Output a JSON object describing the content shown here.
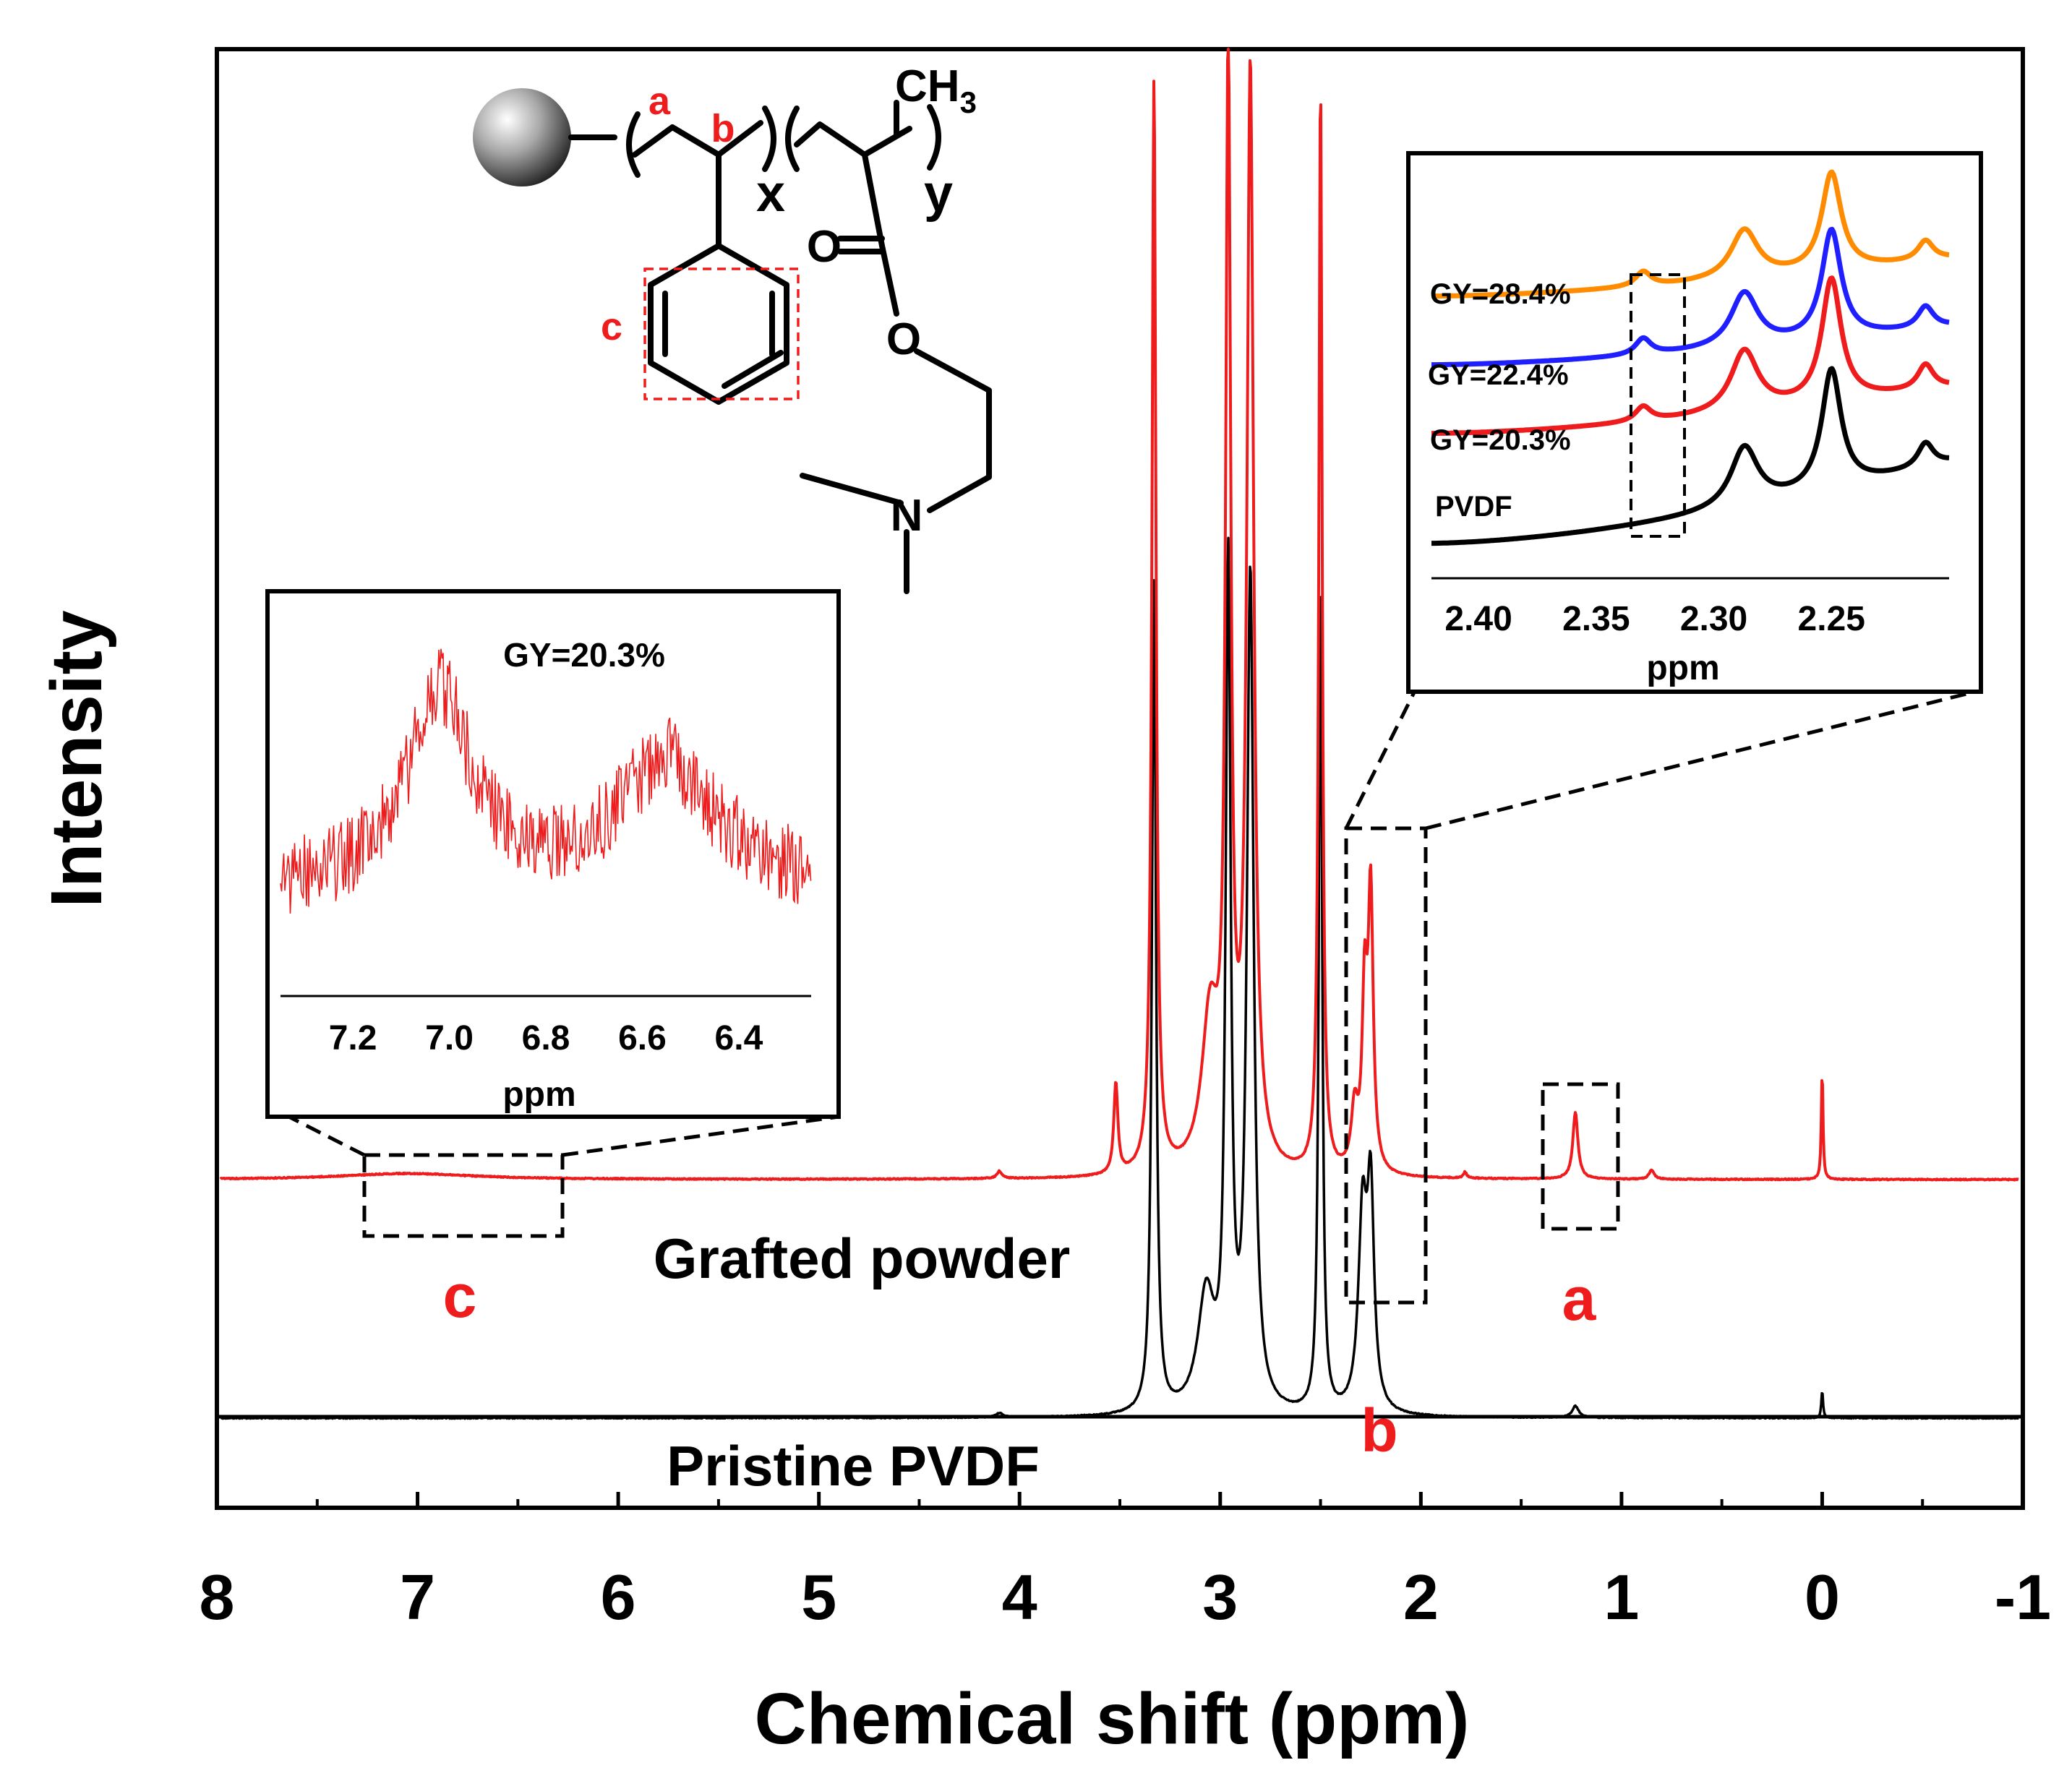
{
  "chart_data": [
    {
      "type": "line",
      "title": "",
      "xlabel": "Chemical shift (ppm)",
      "ylabel": "Intensity",
      "xlim": [
        8,
        -1
      ],
      "x_reversed": true,
      "xticks": [
        "8",
        "7",
        "6",
        "5",
        "4",
        "3",
        "2",
        "1",
        "0",
        "-1"
      ],
      "series": [
        {
          "name": "Grafted powder",
          "color": "#ee1c1c",
          "peaks": [
            {
              "x": 7.05,
              "height": 0.01,
              "width": 0.4
            },
            {
              "x": 4.1,
              "height": 0.012,
              "width": 0.015
            },
            {
              "x": 3.52,
              "height": 0.15,
              "width": 0.012
            },
            {
              "x": 3.33,
              "height": 1.8,
              "width": 0.012
            },
            {
              "x": 3.05,
              "height": 0.25,
              "width": 0.05
            },
            {
              "x": 2.96,
              "height": 1.8,
              "width": 0.015
            },
            {
              "x": 2.85,
              "height": 1.8,
              "width": 0.02
            },
            {
              "x": 2.5,
              "height": 1.8,
              "width": 0.01
            },
            {
              "x": 2.33,
              "height": 0.1,
              "width": 0.02
            },
            {
              "x": 2.28,
              "height": 0.28,
              "width": 0.015
            },
            {
              "x": 2.25,
              "height": 0.45,
              "width": 0.015
            },
            {
              "x": 1.78,
              "height": 0.01,
              "width": 0.01
            },
            {
              "x": 1.23,
              "height": 0.11,
              "width": 0.015
            },
            {
              "x": 0.85,
              "height": 0.015,
              "width": 0.015
            },
            {
              "x": 0.0,
              "height": 0.18,
              "width": 0.005
            }
          ]
        },
        {
          "name": "Pristine PVDF",
          "color": "#000000",
          "peaks": [
            {
              "x": 4.1,
              "height": 0.01,
              "width": 0.02
            },
            {
              "x": 3.33,
              "height": 1.8,
              "width": 0.012
            },
            {
              "x": 3.07,
              "height": 0.25,
              "width": 0.05
            },
            {
              "x": 2.96,
              "height": 1.8,
              "width": 0.015
            },
            {
              "x": 2.85,
              "height": 1.8,
              "width": 0.02
            },
            {
              "x": 2.5,
              "height": 1.8,
              "width": 0.01
            },
            {
              "x": 2.29,
              "height": 0.42,
              "width": 0.025
            },
            {
              "x": 2.25,
              "height": 0.45,
              "width": 0.02
            },
            {
              "x": 1.23,
              "height": 0.025,
              "width": 0.02
            },
            {
              "x": 0.0,
              "height": 0.06,
              "width": 0.005
            }
          ]
        }
      ],
      "annotations": {
        "peak_c": "c",
        "peak_a": "a",
        "peak_b": "b",
        "grafted_label": "Grafted powder",
        "pristine_label": "Pristine PVDF"
      }
    },
    {
      "type": "line",
      "title": "GY=20.3%",
      "xlabel": "ppm",
      "xlim": [
        7.35,
        6.25
      ],
      "x_reversed": true,
      "xticks": [
        "7.2",
        "7.0",
        "6.8",
        "6.6",
        "6.4"
      ],
      "series": [
        {
          "name": "GY=20.3%",
          "color": "#ee1c1c",
          "peaks": [
            {
              "x": 7.02,
              "height": 1.0,
              "width": 0.08
            },
            {
              "x": 6.55,
              "height": 0.65,
              "width": 0.12
            }
          ]
        }
      ]
    },
    {
      "type": "line",
      "title": "",
      "xlabel": "ppm",
      "xlim": [
        2.42,
        2.2
      ],
      "x_reversed": true,
      "xticks": [
        "2.40",
        "2.35",
        "2.30",
        "2.25"
      ],
      "series": [
        {
          "name": "GY=28.4%",
          "color": "#ff8c00",
          "peaks": [
            {
              "x": 2.33,
              "height": 0.15,
              "width": 0.004
            },
            {
              "x": 2.287,
              "height": 0.5,
              "width": 0.007
            },
            {
              "x": 2.25,
              "height": 1.0,
              "width": 0.005
            },
            {
              "x": 2.21,
              "height": 0.2,
              "width": 0.004
            }
          ]
        },
        {
          "name": "GY=22.4%",
          "color": "#1f1fff",
          "peaks": [
            {
              "x": 2.33,
              "height": 0.15,
              "width": 0.004
            },
            {
              "x": 2.287,
              "height": 0.5,
              "width": 0.007
            },
            {
              "x": 2.25,
              "height": 1.0,
              "width": 0.005
            },
            {
              "x": 2.21,
              "height": 0.2,
              "width": 0.004
            }
          ]
        },
        {
          "name": "GY=20.3%",
          "color": "#ee1c1c",
          "peaks": [
            {
              "x": 2.33,
              "height": 0.12,
              "width": 0.004
            },
            {
              "x": 2.287,
              "height": 0.5,
              "width": 0.007
            },
            {
              "x": 2.25,
              "height": 1.0,
              "width": 0.005
            },
            {
              "x": 2.21,
              "height": 0.2,
              "width": 0.004
            }
          ]
        },
        {
          "name": "PVDF",
          "color": "#000000",
          "peaks": [
            {
              "x": 2.287,
              "height": 0.5,
              "width": 0.007
            },
            {
              "x": 2.25,
              "height": 1.0,
              "width": 0.005
            },
            {
              "x": 2.21,
              "height": 0.2,
              "width": 0.004
            }
          ]
        }
      ]
    }
  ],
  "structure": {
    "label_a": "a",
    "label_b": "b",
    "label_c": "c",
    "sub_x": "x",
    "sub_y": "y",
    "methyl": "CH",
    "methyl_sub": "3",
    "carbonyl_o": "O",
    "ester_o": "O",
    "amine_n": "N"
  }
}
